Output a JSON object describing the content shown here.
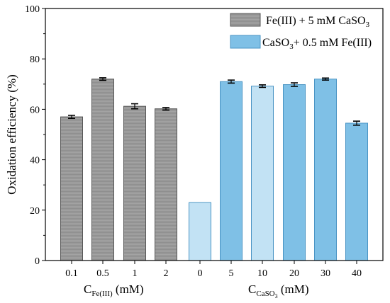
{
  "chart_data": {
    "type": "bar",
    "title": "",
    "ylabel": "Oxidation efficiency (%)",
    "ylim": [
      0,
      100
    ],
    "yticks": [
      0,
      20,
      40,
      60,
      80,
      100
    ],
    "grid": false,
    "legend_position": "top-right",
    "groups": [
      {
        "label_main": "C",
        "label_sub": "Fe(III)",
        "label_suffix": " (mM)"
      },
      {
        "label_main": "C",
        "label_sub": "CaSO",
        "label_sub2": "3",
        "label_suffix": " (mM)"
      }
    ],
    "series": [
      {
        "name_parts": [
          "Fe(III) + 5 mM CaSO",
          "3",
          ""
        ],
        "color": "#9a9a9a",
        "stroke": "#555555",
        "hatch": true,
        "categories": [
          "0.1",
          "0.5",
          "1",
          "2"
        ],
        "values": [
          57.0,
          72.0,
          61.2,
          60.2
        ],
        "errors": [
          0.6,
          0.5,
          1.0,
          0.5
        ]
      },
      {
        "name_parts": [
          "CaSO",
          "3",
          "+ 0.5 mM Fe(III)"
        ],
        "color": "#7fc0e6",
        "stroke": "#4a94c4",
        "hatch": false,
        "categories": [
          "0",
          "5",
          "10",
          "20",
          "30",
          "40"
        ],
        "values": [
          23.0,
          71.0,
          69.2,
          69.8,
          72.0,
          54.5
        ],
        "errors": [
          0.0,
          0.6,
          0.5,
          0.7,
          0.4,
          0.8
        ],
        "light": [
          true,
          false,
          true,
          false,
          false,
          false
        ]
      }
    ]
  }
}
